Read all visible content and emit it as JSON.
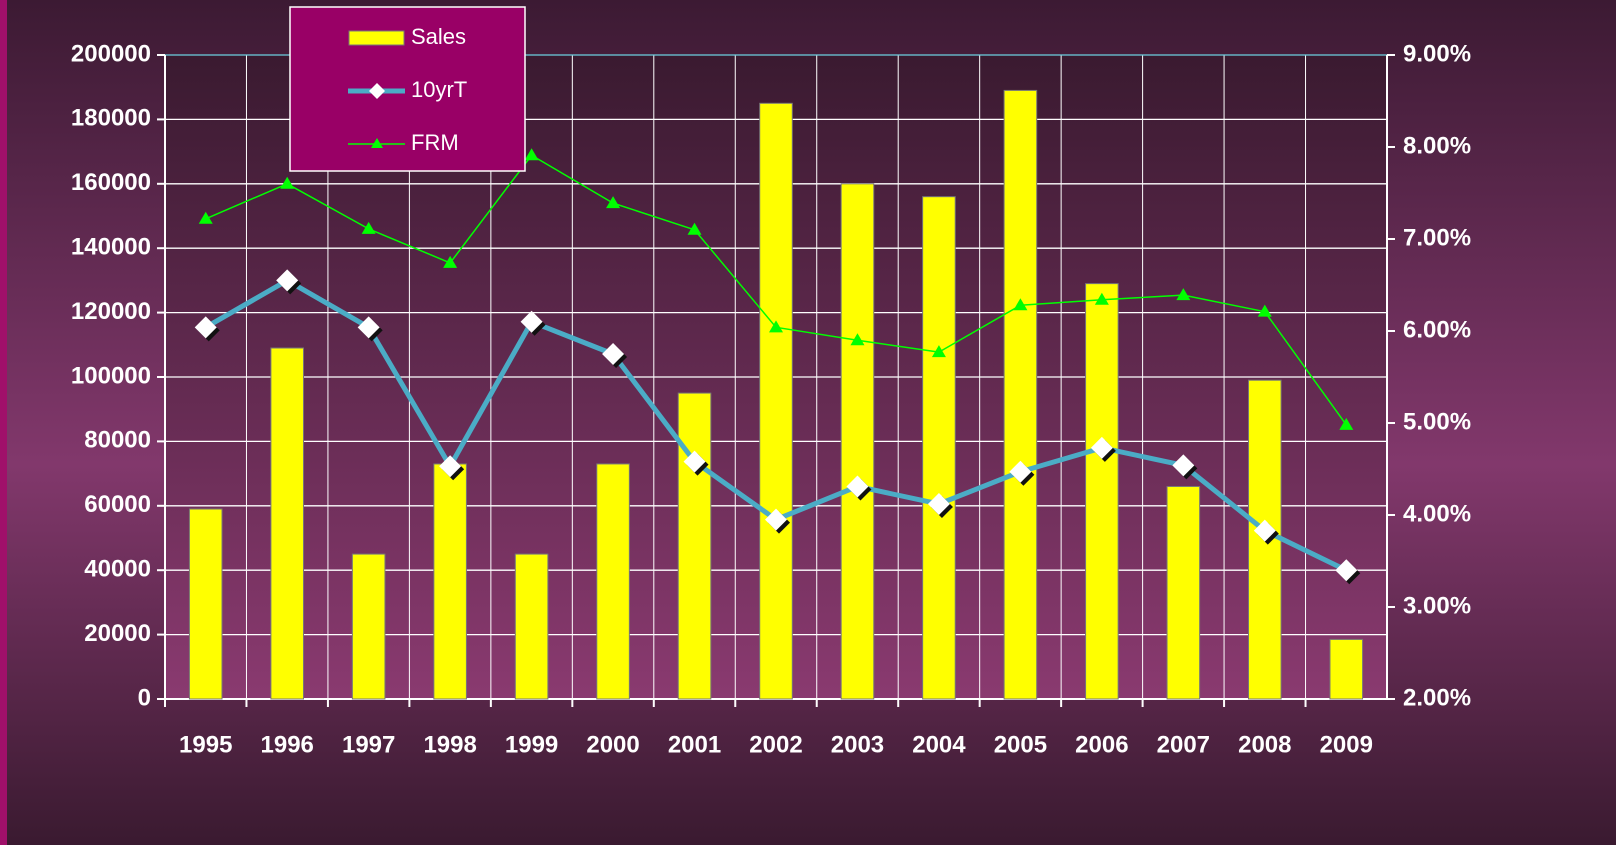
{
  "chart_data": {
    "type": "bar",
    "categories": [
      "1995",
      "1996",
      "1997",
      "1998",
      "1999",
      "2000",
      "2001",
      "2002",
      "2003",
      "2004",
      "2005",
      "2006",
      "2007",
      "2008",
      "2009"
    ],
    "series": [
      {
        "name": "Sales",
        "type": "bar",
        "color": "#ffff00",
        "values": [
          59000,
          109000,
          45000,
          73000,
          45000,
          73000,
          95000,
          185000,
          160000,
          156000,
          189000,
          129000,
          66000,
          99000,
          18500
        ]
      },
      {
        "name": "10yrT",
        "type": "line",
        "axis": "y2",
        "color": "#4bacc6",
        "marker": "diamond",
        "values": [
          6.04,
          6.55,
          6.04,
          4.53,
          6.1,
          5.75,
          4.58,
          3.95,
          4.31,
          4.12,
          4.47,
          4.73,
          4.54,
          3.83,
          3.4
        ]
      },
      {
        "name": "FRM",
        "type": "line",
        "axis": "y2",
        "color": "#00ff00",
        "marker": "triangle",
        "values": [
          7.22,
          7.6,
          7.11,
          6.74,
          7.91,
          7.39,
          7.1,
          6.04,
          5.9,
          5.77,
          6.28,
          6.34,
          6.39,
          6.21,
          4.98
        ]
      }
    ],
    "ylim": [
      0,
      200000
    ],
    "yticks": [
      0,
      20000,
      40000,
      60000,
      80000,
      100000,
      120000,
      140000,
      160000,
      180000,
      200000
    ],
    "y2lim": [
      2,
      9
    ],
    "y2ticks": [
      {
        "value": 2,
        "label": "2.00%"
      },
      {
        "value": 3,
        "label": "3.00%"
      },
      {
        "value": 4,
        "label": "4.00%"
      },
      {
        "value": 5,
        "label": "5.00%"
      },
      {
        "value": 6,
        "label": "6.00%"
      },
      {
        "value": 7,
        "label": "7.00%"
      },
      {
        "value": 8,
        "label": "8.00%"
      },
      {
        "value": 9,
        "label": "9.00%"
      }
    ],
    "grid": true
  }
}
